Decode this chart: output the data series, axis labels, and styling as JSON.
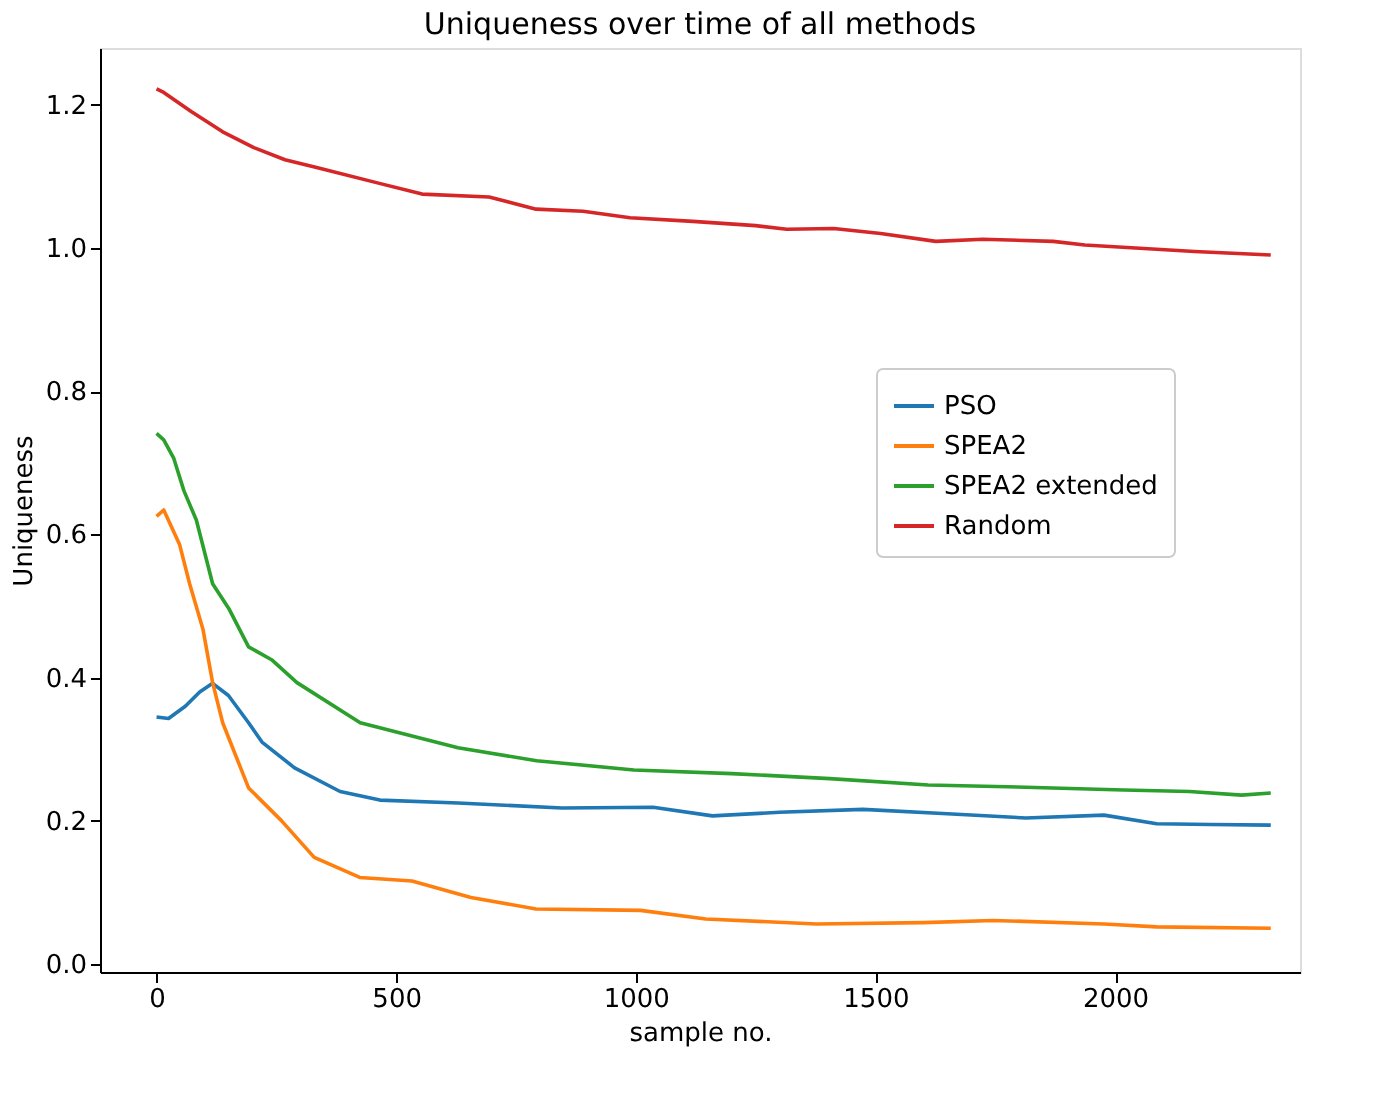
{
  "chart_data": {
    "type": "line",
    "title": "Uniqueness over time of all methods",
    "xlabel": "sample no.",
    "ylabel": "Uniqueness",
    "xlim": [
      -118,
      2386
    ],
    "ylim": [
      -0.011,
      1.279
    ],
    "xticks": [
      0,
      500,
      1000,
      1500,
      2000
    ],
    "yticks": [
      {
        "value": 0,
        "label": "0.0"
      },
      {
        "value": 0.2,
        "label": "0.2"
      },
      {
        "value": 0.4,
        "label": "0.4"
      },
      {
        "value": 0.6,
        "label": "0.6"
      },
      {
        "value": 0.8,
        "label": "0.8"
      },
      {
        "value": 1.0,
        "label": "1.0"
      },
      {
        "value": 1.2,
        "label": "1.2"
      }
    ],
    "grid": false,
    "legend": "right",
    "marker": "none",
    "line_style": "solid",
    "series": [
      {
        "name": "PSO",
        "color": "#1f77b4",
        "x": [
          0,
          25,
          60,
          90,
          117,
          150,
          192,
          220,
          288,
          383,
          466,
          629,
          846,
          1036,
          1160,
          1300,
          1474,
          1650,
          1814,
          1977,
          2087,
          2200,
          2325
        ],
        "values": [
          0.345,
          0.343,
          0.36,
          0.38,
          0.392,
          0.375,
          0.337,
          0.31,
          0.274,
          0.241,
          0.229,
          0.225,
          0.218,
          0.219,
          0.207,
          0.212,
          0.216,
          0.21,
          0.204,
          0.208,
          0.196,
          0.195,
          0.194
        ]
      },
      {
        "name": "SPEA2",
        "color": "#ff7f0e",
        "x": [
          0,
          15,
          48,
          69,
          97,
          117,
          138,
          192,
          261,
          329,
          424,
          533,
          656,
          792,
          1010,
          1146,
          1377,
          1600,
          1745,
          1977,
          2087,
          2325
        ],
        "values": [
          0.625,
          0.634,
          0.586,
          0.531,
          0.467,
          0.393,
          0.337,
          0.246,
          0.2,
          0.149,
          0.121,
          0.116,
          0.093,
          0.077,
          0.075,
          0.063,
          0.056,
          0.058,
          0.061,
          0.056,
          0.052,
          0.05
        ]
      },
      {
        "name": "SPEA2 extended",
        "color": "#2ca02c",
        "x": [
          0,
          15,
          36,
          57,
          83,
          117,
          152,
          192,
          240,
          293,
          425,
          629,
          793,
          996,
          1200,
          1405,
          1610,
          1814,
          2018,
          2155,
          2264,
          2325
        ],
        "values": [
          0.741,
          0.732,
          0.706,
          0.661,
          0.62,
          0.531,
          0.495,
          0.443,
          0.425,
          0.393,
          0.337,
          0.302,
          0.284,
          0.271,
          0.266,
          0.259,
          0.25,
          0.247,
          0.243,
          0.241,
          0.236,
          0.239
        ]
      },
      {
        "name": "Random",
        "color": "#d62728",
        "x": [
          0,
          15,
          73,
          138,
          203,
          268,
          334,
          465,
          554,
          694,
          792,
          890,
          988,
          1119,
          1250,
          1315,
          1413,
          1511,
          1626,
          1724,
          1871,
          1937,
          2166,
          2325
        ],
        "values": [
          1.222,
          1.217,
          1.19,
          1.162,
          1.14,
          1.123,
          1.112,
          1.09,
          1.075,
          1.071,
          1.054,
          1.051,
          1.042,
          1.037,
          1.031,
          1.026,
          1.027,
          1.02,
          1.009,
          1.012,
          1.009,
          1.004,
          0.995,
          0.99
        ]
      }
    ]
  }
}
